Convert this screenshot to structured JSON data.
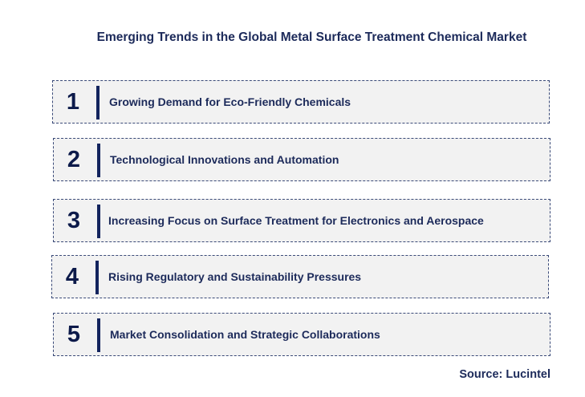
{
  "title": "Emerging Trends in the Global Metal Surface Treatment Chemical Market",
  "items": [
    {
      "number": "1",
      "label": "Growing Demand for Eco-Friendly Chemicals"
    },
    {
      "number": "2",
      "label": "Technological Innovations and Automation"
    },
    {
      "number": "3",
      "label": "Increasing Focus on Surface Treatment for Electronics and Aerospace"
    },
    {
      "number": "4",
      "label": "Rising Regulatory and Sustainability Pressures"
    },
    {
      "number": "5",
      "label": "Market Consolidation and Strategic Collaborations"
    }
  ],
  "source": "Source: Lucintel",
  "colors": {
    "text": "#1c2a5a",
    "accent_bar": "#13245e",
    "box_background": "#f2f2f2",
    "box_border": "#3a4a78"
  }
}
